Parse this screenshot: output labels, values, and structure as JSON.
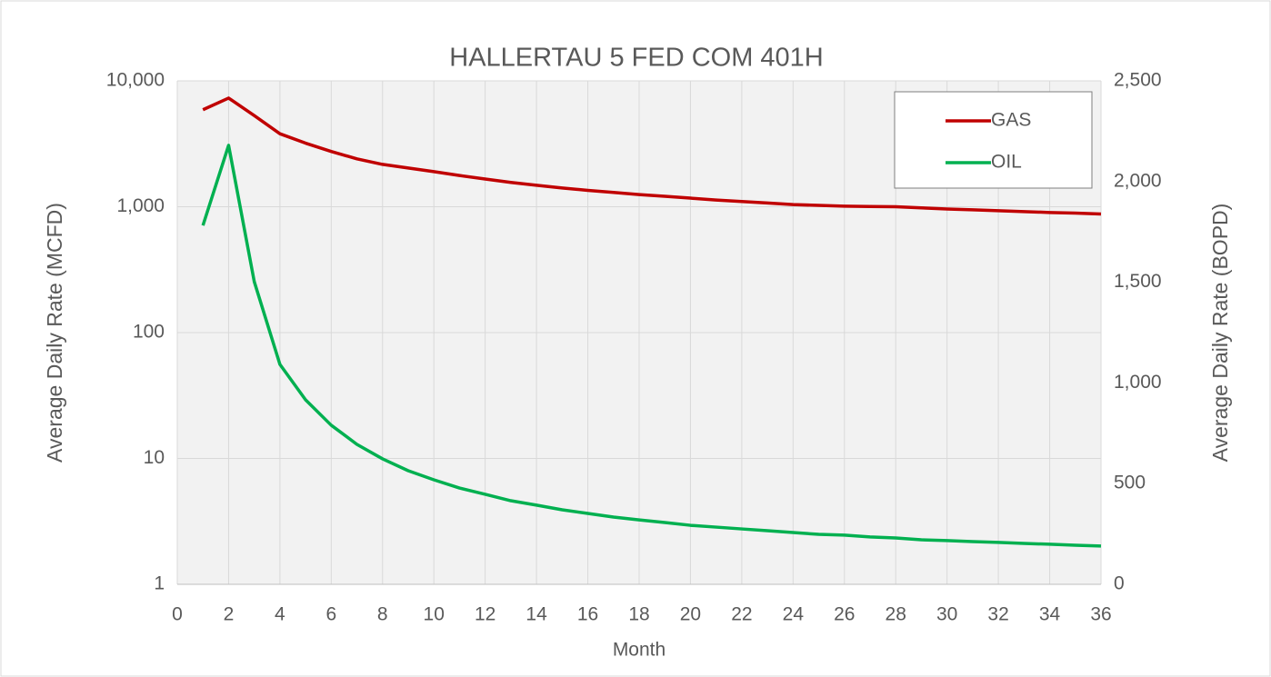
{
  "chart_data": {
    "type": "line",
    "title": "HALLERTAU 5  FED COM 401H",
    "xlabel": "Month",
    "ylabel": "Average Daily Rate (MCFD)",
    "y2label": "Average Daily Rate (BOPD)",
    "x": [
      1,
      2,
      3,
      4,
      5,
      6,
      7,
      8,
      9,
      10,
      11,
      12,
      13,
      14,
      15,
      16,
      17,
      18,
      19,
      20,
      21,
      22,
      23,
      24,
      25,
      26,
      27,
      28,
      29,
      30,
      31,
      32,
      33,
      34,
      35,
      36
    ],
    "series": [
      {
        "name": "GAS",
        "color": "#c00000",
        "axis": "y",
        "values": [
          5900,
          7300,
          5300,
          3800,
          3200,
          2750,
          2400,
          2170,
          2030,
          1900,
          1770,
          1660,
          1560,
          1480,
          1410,
          1350,
          1300,
          1250,
          1210,
          1170,
          1130,
          1100,
          1070,
          1040,
          1025,
          1010,
          1005,
          1000,
          980,
          960,
          945,
          930,
          915,
          900,
          890,
          875
        ]
      },
      {
        "name": "OIL",
        "color": "#00b050",
        "axis": "y2",
        "values": [
          1782,
          2180,
          1503,
          1092,
          916,
          790,
          695,
          623,
          564,
          519,
          478,
          447,
          415,
          393,
          370,
          352,
          334,
          320,
          307,
          293,
          284,
          275,
          266,
          257,
          248,
          244,
          235,
          230,
          221,
          217,
          212,
          208,
          203,
          199,
          194,
          190
        ]
      }
    ],
    "xlim": [
      0,
      36
    ],
    "xticks": [
      0,
      2,
      4,
      6,
      8,
      10,
      12,
      14,
      16,
      18,
      20,
      22,
      24,
      26,
      28,
      30,
      32,
      34,
      36
    ],
    "ylim": [
      1,
      10000
    ],
    "ylog": true,
    "yticks": [
      1,
      10,
      100,
      {
        "value": 1000,
        "label": "1,000"
      },
      {
        "value": 10000,
        "label": "10,000"
      }
    ],
    "y2lim": [
      0,
      2500
    ],
    "y2ticks": [
      0,
      500,
      {
        "value": 1000,
        "label": "1,000"
      },
      {
        "value": 1500,
        "label": "1,500"
      },
      {
        "value": 2000,
        "label": "2,000"
      },
      {
        "value": 2500,
        "label": "2,500"
      }
    ],
    "grid": true,
    "legend": "upper right"
  }
}
